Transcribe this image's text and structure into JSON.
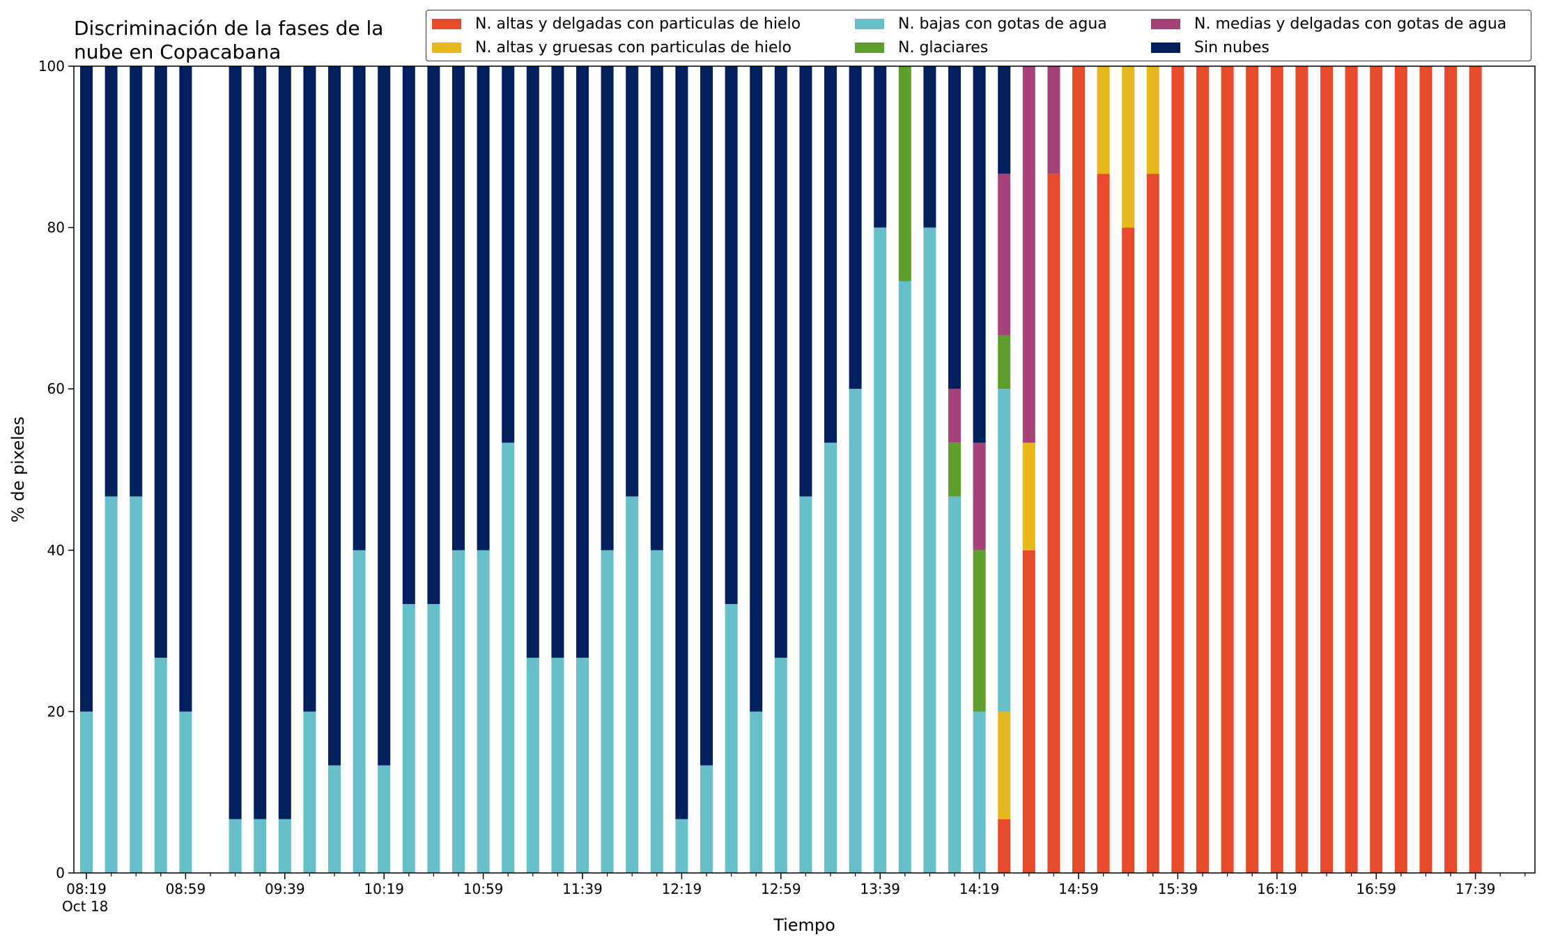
{
  "chart_data": {
    "type": "bar",
    "stacked": true,
    "title": "Discriminación de la fases de la\nnube en Copacabana",
    "title_lines": [
      "Discriminación de la fases de la",
      "nube en Copacabana"
    ],
    "xlabel": "Tiempo",
    "ylabel": "% de pixeles",
    "ylim": [
      0,
      100
    ],
    "yticks": [
      0,
      20,
      40,
      60,
      80,
      100
    ],
    "xtick_labels": [
      {
        "slot": 0,
        "label": "08:19",
        "sub": "Oct 18"
      },
      {
        "slot": 4,
        "label": "08:59"
      },
      {
        "slot": 8,
        "label": "09:39"
      },
      {
        "slot": 12,
        "label": "10:19"
      },
      {
        "slot": 16,
        "label": "10:59"
      },
      {
        "slot": 20,
        "label": "11:39"
      },
      {
        "slot": 24,
        "label": "12:19"
      },
      {
        "slot": 28,
        "label": "12:59"
      },
      {
        "slot": 32,
        "label": "13:39"
      },
      {
        "slot": 36,
        "label": "14:19"
      },
      {
        "slot": 40,
        "label": "14:59"
      },
      {
        "slot": 44,
        "label": "15:39"
      },
      {
        "slot": 48,
        "label": "16:19"
      },
      {
        "slot": 52,
        "label": "16:59"
      },
      {
        "slot": 56,
        "label": "17:39"
      }
    ],
    "x_slots": 59,
    "legend_position": "top-right",
    "legend": [
      {
        "name": "N. altas y delgadas con particulas de hielo",
        "color": "#e84a2c"
      },
      {
        "name": "N. altas y gruesas con particulas de hielo",
        "color": "#e6b81e"
      },
      {
        "name": "N. bajas con gotas de agua",
        "color": "#66bfca"
      },
      {
        "name": "N. glaciares",
        "color": "#5e9e2d"
      },
      {
        "name": "N. medias y delgadas con gotas de agua",
        "color": "#a44279"
      },
      {
        "name": "Sin nubes",
        "color": "#03205e"
      }
    ],
    "categories": [
      "08:19",
      "08:29",
      "08:39",
      "08:49",
      "08:59",
      "09:09",
      "09:19",
      "09:29",
      "09:39",
      "09:49",
      "09:59",
      "10:09",
      "10:19",
      "10:29",
      "10:39",
      "10:49",
      "10:59",
      "11:09",
      "11:19",
      "11:29",
      "11:39",
      "11:49",
      "11:59",
      "12:09",
      "12:19",
      "12:29",
      "12:39",
      "12:49",
      "12:59",
      "13:09",
      "13:19",
      "13:29",
      "13:39",
      "13:49",
      "13:59",
      "14:09",
      "14:19",
      "14:29",
      "14:39",
      "14:49",
      "14:59",
      "15:09",
      "15:19",
      "15:29",
      "15:39",
      "15:49",
      "15:59",
      "16:09",
      "16:19",
      "16:29",
      "16:39",
      "16:49",
      "16:59",
      "17:09",
      "17:19",
      "17:29",
      "17:39"
    ],
    "series": [
      {
        "name": "N. altas y delgadas con particulas de hielo",
        "color": "#e84a2c",
        "values": [
          0,
          0,
          0,
          0,
          0,
          0,
          0,
          0,
          0,
          0,
          0,
          0,
          0,
          0,
          0,
          0,
          0,
          0,
          0,
          0,
          0,
          0,
          0,
          0,
          0,
          0,
          0,
          0,
          0,
          0,
          0,
          0,
          0,
          0,
          0,
          0,
          0,
          6.67,
          40,
          86.67,
          100,
          86.67,
          80,
          86.67,
          100,
          100,
          100,
          100,
          100,
          100,
          100,
          100,
          100,
          100,
          100,
          100,
          100
        ]
      },
      {
        "name": "N. altas y gruesas con particulas de hielo",
        "color": "#e6b81e",
        "values": [
          0,
          0,
          0,
          0,
          0,
          0,
          0,
          0,
          0,
          0,
          0,
          0,
          0,
          0,
          0,
          0,
          0,
          0,
          0,
          0,
          0,
          0,
          0,
          0,
          0,
          0,
          0,
          0,
          0,
          0,
          0,
          0,
          0,
          0,
          0,
          0,
          0,
          13.33,
          13.33,
          0,
          0,
          13.33,
          20,
          13.33,
          0,
          0,
          0,
          0,
          0,
          0,
          0,
          0,
          0,
          0,
          0,
          0,
          0
        ]
      },
      {
        "name": "N. bajas con gotas de agua",
        "color": "#66bfca",
        "values": [
          20,
          46.67,
          46.67,
          26.67,
          20,
          0,
          6.67,
          6.67,
          6.67,
          20,
          13.33,
          40,
          13.33,
          33.33,
          33.33,
          40,
          40,
          53.33,
          26.67,
          26.67,
          26.67,
          40,
          46.67,
          40,
          6.67,
          13.33,
          33.33,
          20,
          26.67,
          46.67,
          53.33,
          60,
          80,
          73.33,
          80,
          46.67,
          20,
          40,
          0,
          0,
          0,
          0,
          0,
          0,
          0,
          0,
          0,
          0,
          0,
          0,
          0,
          0,
          0,
          0,
          0,
          0,
          0
        ]
      },
      {
        "name": "N. glaciares",
        "color": "#5e9e2d",
        "values": [
          0,
          0,
          0,
          0,
          0,
          0,
          0,
          0,
          0,
          0,
          0,
          0,
          0,
          0,
          0,
          0,
          0,
          0,
          0,
          0,
          0,
          0,
          0,
          0,
          0,
          0,
          0,
          0,
          0,
          0,
          0,
          0,
          0,
          26.67,
          0,
          6.67,
          20,
          6.67,
          0,
          0,
          0,
          0,
          0,
          0,
          0,
          0,
          0,
          0,
          0,
          0,
          0,
          0,
          0,
          0,
          0,
          0,
          0
        ]
      },
      {
        "name": "N. medias y delgadas con gotas de agua",
        "color": "#a44279",
        "values": [
          0,
          0,
          0,
          0,
          0,
          0,
          0,
          0,
          0,
          0,
          0,
          0,
          0,
          0,
          0,
          0,
          0,
          0,
          0,
          0,
          0,
          0,
          0,
          0,
          0,
          0,
          0,
          0,
          0,
          0,
          0,
          0,
          0,
          0,
          0,
          6.67,
          13.33,
          20,
          46.67,
          13.33,
          0,
          0,
          0,
          0,
          0,
          0,
          0,
          0,
          0,
          0,
          0,
          0,
          0,
          0,
          0,
          0,
          0
        ]
      },
      {
        "name": "Sin nubes",
        "color": "#03205e",
        "values": [
          80,
          53.33,
          53.33,
          73.33,
          80,
          0,
          93.33,
          93.33,
          93.33,
          80,
          86.67,
          60,
          86.67,
          66.67,
          66.67,
          60,
          60,
          46.67,
          73.33,
          73.33,
          73.33,
          60,
          53.33,
          60,
          93.33,
          86.67,
          66.67,
          80,
          73.33,
          53.33,
          46.67,
          40,
          20,
          0,
          20,
          40,
          46.67,
          13.33,
          0,
          0,
          0,
          0,
          0,
          0,
          0,
          0,
          0,
          0,
          0,
          0,
          0,
          0,
          0,
          0,
          0,
          0,
          0
        ]
      }
    ]
  }
}
